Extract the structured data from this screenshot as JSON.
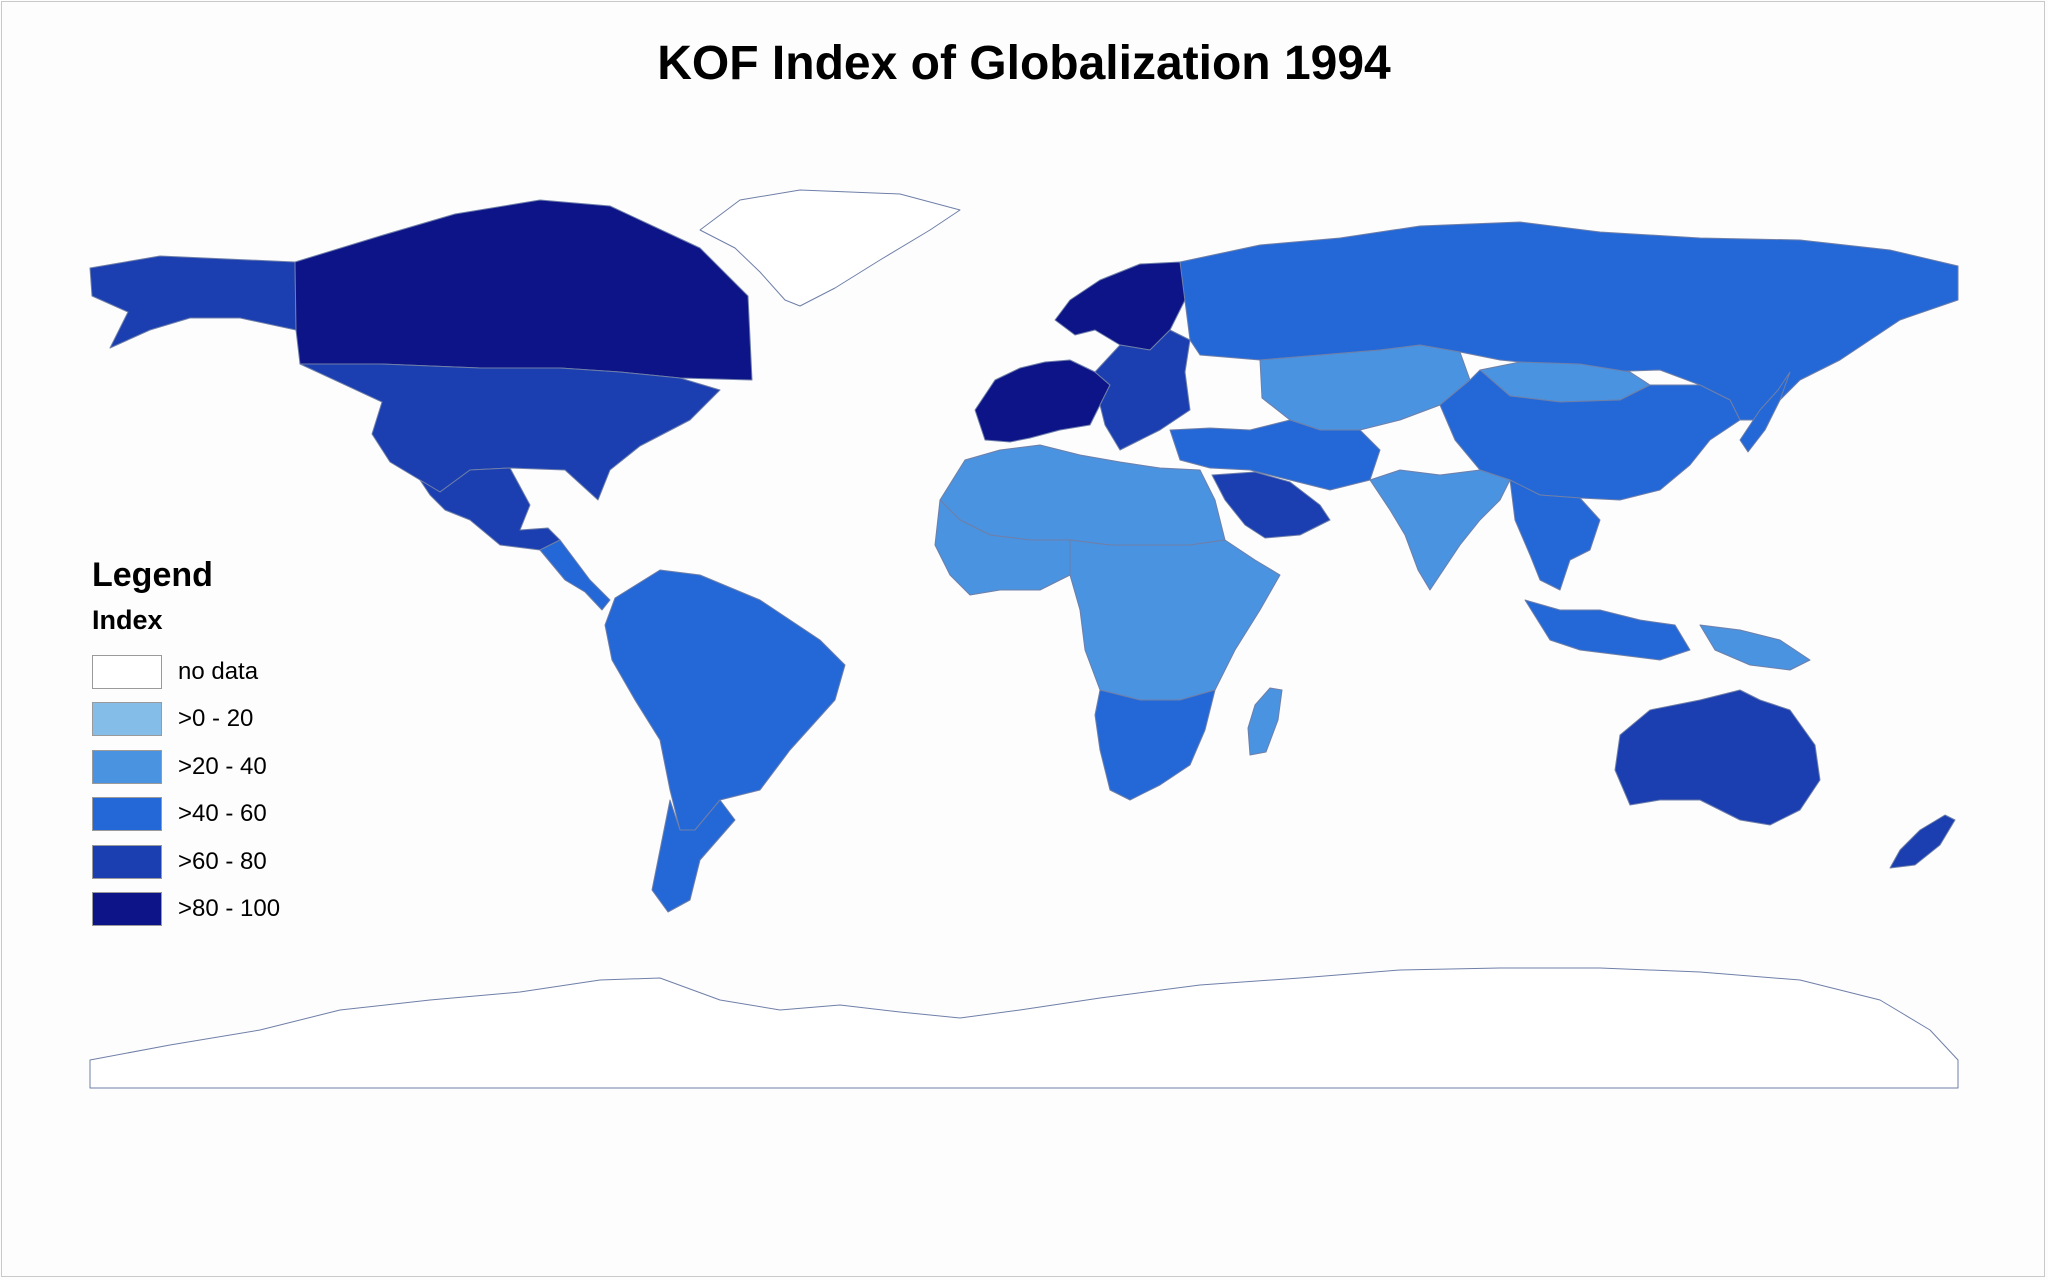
{
  "title": "KOF Index of Globalization 1994",
  "legend": {
    "title": "Legend",
    "subtitle": "Index",
    "items": [
      {
        "label": "no data",
        "color": "#ffffff"
      },
      {
        "label": ">0 - 20",
        "color": "#85bde9"
      },
      {
        "label": ">20 - 40",
        "color": "#4a93e0"
      },
      {
        "label": ">40 - 60",
        "color": "#2368d6"
      },
      {
        "label": ">60 - 80",
        "color": "#1b3eb0"
      },
      {
        "label": ">80 - 100",
        "color": "#0d1488"
      }
    ]
  },
  "regions": [
    {
      "name": "Canada",
      "class": 5
    },
    {
      "name": "USA",
      "class": 4
    },
    {
      "name": "Mexico",
      "class": 4
    },
    {
      "name": "Alaska",
      "class": 4
    },
    {
      "name": "Central America",
      "class": 3
    },
    {
      "name": "Greenland",
      "class": 0
    },
    {
      "name": "South America",
      "class": 3
    },
    {
      "name": "Argentina",
      "class": 3
    },
    {
      "name": "Scandinavia",
      "class": 5
    },
    {
      "name": "Western Europe",
      "class": 5
    },
    {
      "name": "Eastern Europe",
      "class": 4
    },
    {
      "name": "Russia",
      "class": 3
    },
    {
      "name": "Central Asia",
      "class": 2
    },
    {
      "name": "Mongolia",
      "class": 2
    },
    {
      "name": "China",
      "class": 3
    },
    {
      "name": "India",
      "class": 2
    },
    {
      "name": "Middle East",
      "class": 3
    },
    {
      "name": "Saudi Arabia",
      "class": 4
    },
    {
      "name": "North Africa",
      "class": 2
    },
    {
      "name": "West Africa",
      "class": 2
    },
    {
      "name": "Central Africa",
      "class": 2
    },
    {
      "name": "Southern Africa",
      "class": 3
    },
    {
      "name": "Madagascar",
      "class": 2
    },
    {
      "name": "Southeast Asia",
      "class": 3
    },
    {
      "name": "Indonesia",
      "class": 3
    },
    {
      "name": "New Guinea",
      "class": 2
    },
    {
      "name": "Japan",
      "class": 3
    },
    {
      "name": "Australia",
      "class": 4
    },
    {
      "name": "New Zealand",
      "class": 4
    },
    {
      "name": "Antarctica",
      "class": 0
    }
  ]
}
